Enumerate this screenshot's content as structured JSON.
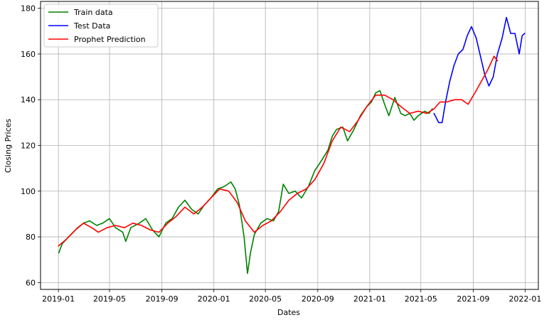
{
  "chart_data": {
    "type": "line",
    "xlabel": "Dates",
    "ylabel": "Closing Prices",
    "xlim": [
      "2018-11-20",
      "2022-02-01"
    ],
    "ylim": [
      57,
      183
    ],
    "x_ticks": [
      "2019-01",
      "2019-05",
      "2019-09",
      "2020-01",
      "2020-05",
      "2020-09",
      "2021-01",
      "2021-05",
      "2021-09",
      "2022-01"
    ],
    "y_ticks": [
      60,
      80,
      100,
      120,
      140,
      160,
      180
    ],
    "grid": true,
    "legend_position": "top-left",
    "series": [
      {
        "name": "Train data",
        "color": "#008000",
        "points": [
          [
            "2019-01-02",
            73
          ],
          [
            "2019-01-10",
            77
          ],
          [
            "2019-01-25",
            80
          ],
          [
            "2019-02-15",
            84
          ],
          [
            "2019-03-01",
            86
          ],
          [
            "2019-03-15",
            87
          ],
          [
            "2019-04-01",
            85
          ],
          [
            "2019-04-15",
            86
          ],
          [
            "2019-05-01",
            88
          ],
          [
            "2019-05-15",
            84
          ],
          [
            "2019-06-01",
            82
          ],
          [
            "2019-06-08",
            78
          ],
          [
            "2019-06-20",
            84
          ],
          [
            "2019-07-10",
            86
          ],
          [
            "2019-07-25",
            88
          ],
          [
            "2019-08-10",
            83
          ],
          [
            "2019-08-25",
            80
          ],
          [
            "2019-09-10",
            86
          ],
          [
            "2019-09-25",
            88
          ],
          [
            "2019-10-10",
            93
          ],
          [
            "2019-10-25",
            96
          ],
          [
            "2019-11-10",
            92
          ],
          [
            "2019-11-25",
            90
          ],
          [
            "2019-12-10",
            94
          ],
          [
            "2019-12-25",
            97
          ],
          [
            "2020-01-10",
            101
          ],
          [
            "2020-01-25",
            102
          ],
          [
            "2020-02-10",
            104
          ],
          [
            "2020-02-20",
            101
          ],
          [
            "2020-03-01",
            94
          ],
          [
            "2020-03-12",
            80
          ],
          [
            "2020-03-20",
            64
          ],
          [
            "2020-03-27",
            73
          ],
          [
            "2020-04-05",
            81
          ],
          [
            "2020-04-20",
            86
          ],
          [
            "2020-05-05",
            88
          ],
          [
            "2020-05-20",
            87
          ],
          [
            "2020-06-01",
            91
          ],
          [
            "2020-06-12",
            103
          ],
          [
            "2020-06-25",
            99
          ],
          [
            "2020-07-10",
            100
          ],
          [
            "2020-07-25",
            97
          ],
          [
            "2020-08-10",
            102
          ],
          [
            "2020-08-25",
            109
          ],
          [
            "2020-09-05",
            112
          ],
          [
            "2020-09-15",
            115
          ],
          [
            "2020-09-25",
            118
          ],
          [
            "2020-10-05",
            124
          ],
          [
            "2020-10-15",
            127
          ],
          [
            "2020-10-30",
            128
          ],
          [
            "2020-11-10",
            122
          ],
          [
            "2020-11-25",
            127
          ],
          [
            "2020-12-10",
            133
          ],
          [
            "2020-12-25",
            137
          ],
          [
            "2021-01-05",
            139
          ],
          [
            "2021-01-15",
            143
          ],
          [
            "2021-01-25",
            144
          ],
          [
            "2021-02-05",
            138
          ],
          [
            "2021-02-15",
            133
          ],
          [
            "2021-03-01",
            141
          ],
          [
            "2021-03-15",
            134
          ],
          [
            "2021-03-25",
            133
          ],
          [
            "2021-04-05",
            134
          ],
          [
            "2021-04-15",
            131
          ],
          [
            "2021-04-25",
            133
          ],
          [
            "2021-05-10",
            135
          ],
          [
            "2021-05-20",
            134
          ],
          [
            "2021-05-28",
            136
          ]
        ]
      },
      {
        "name": "Test Data",
        "color": "#0000ff",
        "points": [
          [
            "2021-06-01",
            134
          ],
          [
            "2021-06-12",
            130
          ],
          [
            "2021-06-20",
            130
          ],
          [
            "2021-06-28",
            139
          ],
          [
            "2021-07-08",
            148
          ],
          [
            "2021-07-18",
            155
          ],
          [
            "2021-07-28",
            160
          ],
          [
            "2021-08-08",
            162
          ],
          [
            "2021-08-18",
            168
          ],
          [
            "2021-08-28",
            172
          ],
          [
            "2021-09-08",
            167
          ],
          [
            "2021-09-18",
            159
          ],
          [
            "2021-09-28",
            151
          ],
          [
            "2021-10-08",
            146
          ],
          [
            "2021-10-18",
            150
          ],
          [
            "2021-10-28",
            160
          ],
          [
            "2021-11-08",
            167
          ],
          [
            "2021-11-18",
            176
          ],
          [
            "2021-11-28",
            169
          ],
          [
            "2021-12-08",
            169
          ],
          [
            "2021-12-18",
            160
          ],
          [
            "2021-12-25",
            168
          ],
          [
            "2021-12-31",
            169
          ]
        ]
      },
      {
        "name": "Prophet Prediction",
        "color": "#ff0000",
        "points": [
          [
            "2019-01-01",
            76
          ],
          [
            "2019-01-20",
            79
          ],
          [
            "2019-02-10",
            83
          ],
          [
            "2019-03-01",
            86
          ],
          [
            "2019-03-20",
            84
          ],
          [
            "2019-04-05",
            82
          ],
          [
            "2019-04-25",
            84
          ],
          [
            "2019-05-15",
            85
          ],
          [
            "2019-06-05",
            84
          ],
          [
            "2019-06-25",
            86
          ],
          [
            "2019-07-15",
            85
          ],
          [
            "2019-08-05",
            83
          ],
          [
            "2019-08-25",
            82
          ],
          [
            "2019-09-15",
            86
          ],
          [
            "2019-10-05",
            89
          ],
          [
            "2019-10-25",
            93
          ],
          [
            "2019-11-15",
            90
          ],
          [
            "2019-12-05",
            93
          ],
          [
            "2019-12-25",
            97
          ],
          [
            "2020-01-15",
            101
          ],
          [
            "2020-02-05",
            100
          ],
          [
            "2020-02-25",
            95
          ],
          [
            "2020-03-15",
            87
          ],
          [
            "2020-04-05",
            82
          ],
          [
            "2020-04-25",
            85
          ],
          [
            "2020-05-15",
            87
          ],
          [
            "2020-06-05",
            91
          ],
          [
            "2020-06-25",
            96
          ],
          [
            "2020-07-15",
            99
          ],
          [
            "2020-08-05",
            101
          ],
          [
            "2020-08-25",
            105
          ],
          [
            "2020-09-15",
            112
          ],
          [
            "2020-10-05",
            122
          ],
          [
            "2020-10-25",
            128
          ],
          [
            "2020-11-15",
            126
          ],
          [
            "2020-12-05",
            131
          ],
          [
            "2020-12-25",
            137
          ],
          [
            "2021-01-15",
            142
          ],
          [
            "2021-02-05",
            142
          ],
          [
            "2021-02-25",
            140
          ],
          [
            "2021-03-15",
            137
          ],
          [
            "2021-04-05",
            134
          ],
          [
            "2021-04-25",
            135
          ],
          [
            "2021-05-15",
            134
          ],
          [
            "2021-06-01",
            136
          ],
          [
            "2021-06-15",
            139
          ],
          [
            "2021-07-01",
            139
          ],
          [
            "2021-07-20",
            140
          ],
          [
            "2021-08-05",
            140
          ],
          [
            "2021-08-20",
            138
          ],
          [
            "2021-09-05",
            143
          ],
          [
            "2021-09-20",
            148
          ],
          [
            "2021-10-05",
            153
          ],
          [
            "2021-10-20",
            159
          ],
          [
            "2021-10-28",
            157
          ]
        ]
      }
    ]
  }
}
